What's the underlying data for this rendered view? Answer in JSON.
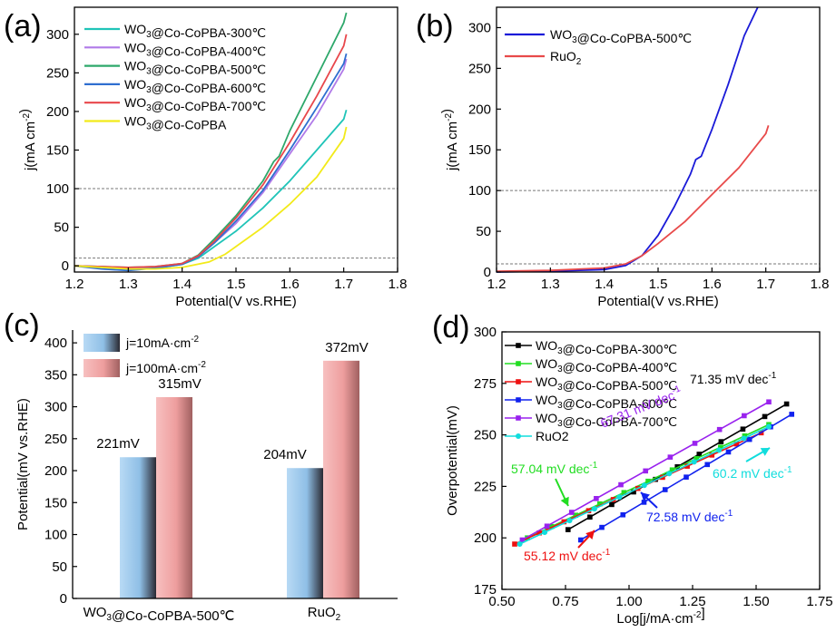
{
  "colors": {
    "c300": "#20c4b8",
    "c400": "#b07ae8",
    "c500": "#2ea86b",
    "c600": "#2f6fd0",
    "c700": "#e8474b",
    "cbase": "#f2ea1a",
    "ruo2": "#e84a4a",
    "b500": "#1a1ad8",
    "t300": "#000000",
    "t400": "#22dd22",
    "t500": "#ee1111",
    "t600": "#1122ee",
    "t700": "#9922ee",
    "truo2": "#11dddd",
    "bar_blue": "#9ec9ee",
    "bar_red": "#f2a6a6"
  },
  "chart_data": [
    {
      "panel": "(a)",
      "type": "line",
      "xlabel": "Potential(V vs.RHE)",
      "ylabel": "j(mA cm-2)",
      "xlim": [
        1.2,
        1.8
      ],
      "ylim": [
        -8,
        335
      ],
      "xticks": [
        "1.2",
        "1.3",
        "1.4",
        "1.5",
        "1.6",
        "1.7",
        "1.8"
      ],
      "yticks": [
        "0",
        "50",
        "100",
        "150",
        "200",
        "250",
        "300"
      ],
      "reference_lines": [
        100,
        10
      ],
      "legend": "top-left",
      "series": [
        {
          "name": "WO3@Co-CoPBA-300℃",
          "color_key": "c300",
          "x": [
            1.2,
            1.25,
            1.3,
            1.35,
            1.4,
            1.43,
            1.46,
            1.5,
            1.55,
            1.6,
            1.65,
            1.7,
            1.705
          ],
          "y": [
            0,
            -2,
            -4,
            -3,
            2,
            10,
            25,
            45,
            75,
            110,
            150,
            190,
            202
          ]
        },
        {
          "name": "WO3@Co-CoPBA-400℃",
          "color_key": "c400",
          "x": [
            1.2,
            1.25,
            1.3,
            1.35,
            1.4,
            1.43,
            1.46,
            1.5,
            1.55,
            1.6,
            1.65,
            1.7,
            1.705
          ],
          "y": [
            0,
            -1,
            -3,
            -2,
            3,
            12,
            30,
            55,
            95,
            145,
            195,
            255,
            268
          ]
        },
        {
          "name": "WO3@Co-CoPBA-500℃",
          "color_key": "c500",
          "x": [
            1.2,
            1.25,
            1.3,
            1.35,
            1.4,
            1.43,
            1.46,
            1.5,
            1.55,
            1.57,
            1.58,
            1.6,
            1.65,
            1.7,
            1.705
          ],
          "y": [
            0,
            -1,
            -2,
            -1,
            3,
            14,
            35,
            65,
            110,
            135,
            142,
            175,
            245,
            315,
            328
          ]
        },
        {
          "name": "WO3@Co-CoPBA-600℃",
          "color_key": "c600",
          "x": [
            1.2,
            1.25,
            1.3,
            1.35,
            1.4,
            1.43,
            1.46,
            1.5,
            1.55,
            1.6,
            1.65,
            1.7,
            1.705
          ],
          "y": [
            0,
            -4,
            -6,
            -3,
            2,
            12,
            30,
            58,
            98,
            150,
            205,
            262,
            275
          ]
        },
        {
          "name": "WO3@Co-CoPBA-700℃",
          "color_key": "c700",
          "x": [
            1.2,
            1.25,
            1.3,
            1.35,
            1.4,
            1.43,
            1.46,
            1.5,
            1.55,
            1.6,
            1.65,
            1.7,
            1.705
          ],
          "y": [
            0,
            -1,
            -2,
            -1,
            3,
            13,
            32,
            62,
            105,
            160,
            220,
            285,
            300
          ]
        },
        {
          "name": "WO3@Co-CoPBA",
          "color_key": "cbase",
          "x": [
            1.2,
            1.25,
            1.3,
            1.35,
            1.4,
            1.45,
            1.48,
            1.5,
            1.55,
            1.6,
            1.65,
            1.7,
            1.705
          ],
          "y": [
            0,
            -2,
            -4,
            -4,
            -2,
            5,
            15,
            25,
            50,
            80,
            115,
            165,
            180
          ]
        }
      ]
    },
    {
      "panel": "(b)",
      "type": "line",
      "xlabel": "Potential(V vs.RHE)",
      "ylabel": "j(mA cm-2)",
      "xlim": [
        1.2,
        1.8
      ],
      "ylim": [
        0,
        325
      ],
      "xticks": [
        "1.2",
        "1.3",
        "1.4",
        "1.5",
        "1.6",
        "1.7",
        "1.8"
      ],
      "yticks": [
        "0",
        "50",
        "100",
        "150",
        "200",
        "250",
        "300"
      ],
      "reference_lines": [
        100,
        10
      ],
      "legend": "top-left",
      "series": [
        {
          "name": "WO3@Co-CoPBA-500℃",
          "color_key": "b500",
          "x": [
            1.2,
            1.3,
            1.4,
            1.44,
            1.47,
            1.5,
            1.53,
            1.56,
            1.57,
            1.58,
            1.6,
            1.63,
            1.66,
            1.685
          ],
          "y": [
            0,
            1,
            3,
            8,
            20,
            45,
            80,
            120,
            138,
            142,
            175,
            230,
            290,
            325
          ]
        },
        {
          "name": "RuO2",
          "color_key": "ruo2",
          "x": [
            1.2,
            1.3,
            1.4,
            1.44,
            1.47,
            1.5,
            1.55,
            1.6,
            1.65,
            1.7,
            1.705
          ],
          "y": [
            1,
            2,
            5,
            10,
            20,
            35,
            62,
            95,
            128,
            170,
            180
          ]
        }
      ]
    },
    {
      "panel": "(c)",
      "type": "bar",
      "ylabel": "Potential(mV vs.RHE)",
      "ylim": [
        0,
        420
      ],
      "yticks": [
        "0",
        "50",
        "100",
        "150",
        "200",
        "250",
        "300",
        "350",
        "400"
      ],
      "categories": [
        "WO3@Co-CoPBA-500℃",
        "RuO2"
      ],
      "legend": "top-left",
      "series": [
        {
          "name": "j=10mA·cm-2",
          "color_key": "bar_blue",
          "values": [
            221,
            204
          ],
          "labels": [
            "221mV",
            "204mV"
          ]
        },
        {
          "name": "j=100mA·cm-2",
          "color_key": "bar_red",
          "values": [
            315,
            372
          ],
          "labels": [
            "315mV",
            "372mV"
          ]
        }
      ]
    },
    {
      "panel": "(d)",
      "type": "line",
      "xlabel": "Log[j/mA·cm-2]",
      "ylabel": "Overpotential(mV)",
      "xlim": [
        0.5,
        1.75
      ],
      "ylim": [
        175,
        300
      ],
      "xticks": [
        "0.50",
        "0.75",
        "1.00",
        "1.25",
        "1.50",
        "1.75"
      ],
      "yticks": [
        "175",
        "200",
        "225",
        "250",
        "275",
        "300"
      ],
      "legend": "top-left",
      "series": [
        {
          "name": "WO3@Co-CoPBA-300℃",
          "color_key": "t300",
          "x0": 0.76,
          "x1": 1.62,
          "y0": 204,
          "y1": 265,
          "annotation": "71.35 mV dec-1"
        },
        {
          "name": "WO3@Co-CoPBA-400℃",
          "color_key": "t400",
          "x0": 0.6,
          "x1": 1.55,
          "y0": 200,
          "y1": 255,
          "annotation": "57.04 mV dec-1"
        },
        {
          "name": "WO3@Co-CoPBA-500℃",
          "color_key": "t500",
          "x0": 0.55,
          "x1": 1.52,
          "y0": 197,
          "y1": 251,
          "annotation": "55.12 mV dec-1"
        },
        {
          "name": "WO3@Co-CoPBA-600℃",
          "color_key": "t600",
          "x0": 0.81,
          "x1": 1.64,
          "y0": 199,
          "y1": 260,
          "annotation": "72.58 mV dec-1"
        },
        {
          "name": "WO3@Co-CoPBA-700℃",
          "color_key": "t700",
          "x0": 0.58,
          "x1": 1.55,
          "y0": 199,
          "y1": 266,
          "annotation": "67.31 mV dec-1"
        },
        {
          "name": "RuO2",
          "color_key": "truo2",
          "x0": 0.57,
          "x1": 1.55,
          "y0": 197,
          "y1": 254,
          "annotation": "60.2 mV dec-1"
        }
      ]
    }
  ]
}
